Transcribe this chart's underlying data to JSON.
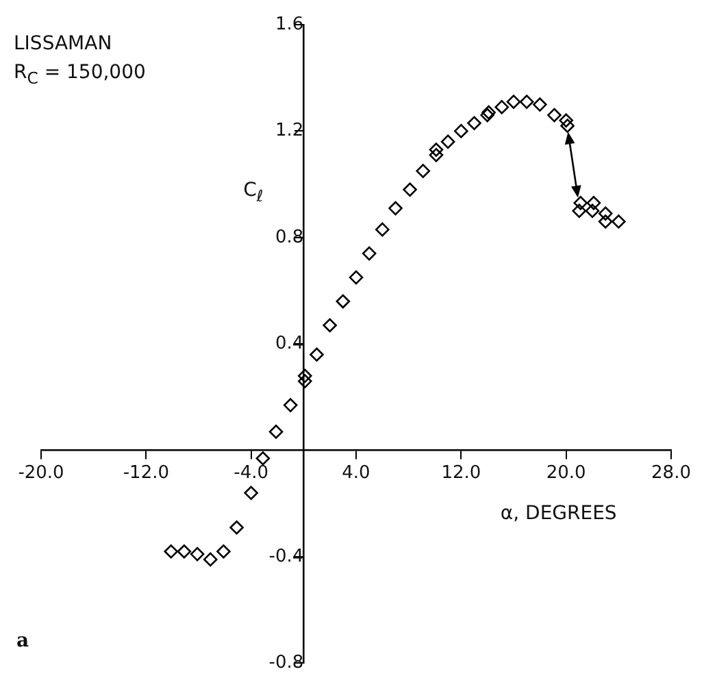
{
  "chart_data": {
    "type": "scatter",
    "xlabel": "α, DEGREES",
    "ylabel": "C$_{ℓ}$",
    "annotations": [
      "LISSAMAN",
      "R$_{C}$ = 150,000",
      "a"
    ],
    "x": [
      -10.1,
      -9.1,
      -8.1,
      -7.1,
      -6.1,
      -5.1,
      -4.0,
      -3.1,
      -2.1,
      -1.0,
      0.1,
      0.1,
      1.0,
      2.0,
      3.0,
      4.0,
      5.0,
      6.0,
      7.0,
      8.1,
      9.1,
      10.1,
      10.1,
      11.0,
      12.0,
      13.0,
      14.0,
      14.1,
      15.1,
      16.0,
      17.0,
      18.0,
      19.1,
      20.0,
      20.1,
      21.1,
      21.0,
      22.1,
      22.0,
      23.0,
      23.0,
      24.0
    ],
    "series": [
      {
        "color": "#000000",
        "values": [
          -0.38,
          -0.38,
          -0.39,
          -0.41,
          -0.38,
          -0.29,
          -0.16,
          -0.03,
          0.07,
          0.17,
          0.26,
          0.28,
          0.36,
          0.47,
          0.56,
          0.65,
          0.74,
          0.83,
          0.91,
          0.98,
          1.05,
          1.11,
          1.13,
          1.16,
          1.2,
          1.23,
          1.26,
          1.27,
          1.29,
          1.31,
          1.31,
          1.3,
          1.26,
          1.24,
          1.22,
          0.93,
          0.9,
          0.93,
          0.9,
          0.89,
          0.86,
          0.86
        ]
      }
    ],
    "marker": "diamond",
    "xlim": [
      -20,
      28
    ],
    "xticks": [
      {
        "value": -20,
        "label": "-20.0"
      },
      {
        "value": -12,
        "label": "-12.0"
      },
      {
        "value": -4,
        "label": "-4.0"
      },
      {
        "value": 4,
        "label": "4.0"
      },
      {
        "value": 12,
        "label": "12.0"
      },
      {
        "value": 20,
        "label": "20.0"
      },
      {
        "value": 28,
        "label": "28.0"
      }
    ],
    "ylim": [
      -0.8,
      1.6
    ],
    "yticks": [
      -0.8,
      -0.4,
      0.4,
      0.8,
      1.2,
      1.6
    ],
    "grid": false,
    "legend": false
  }
}
